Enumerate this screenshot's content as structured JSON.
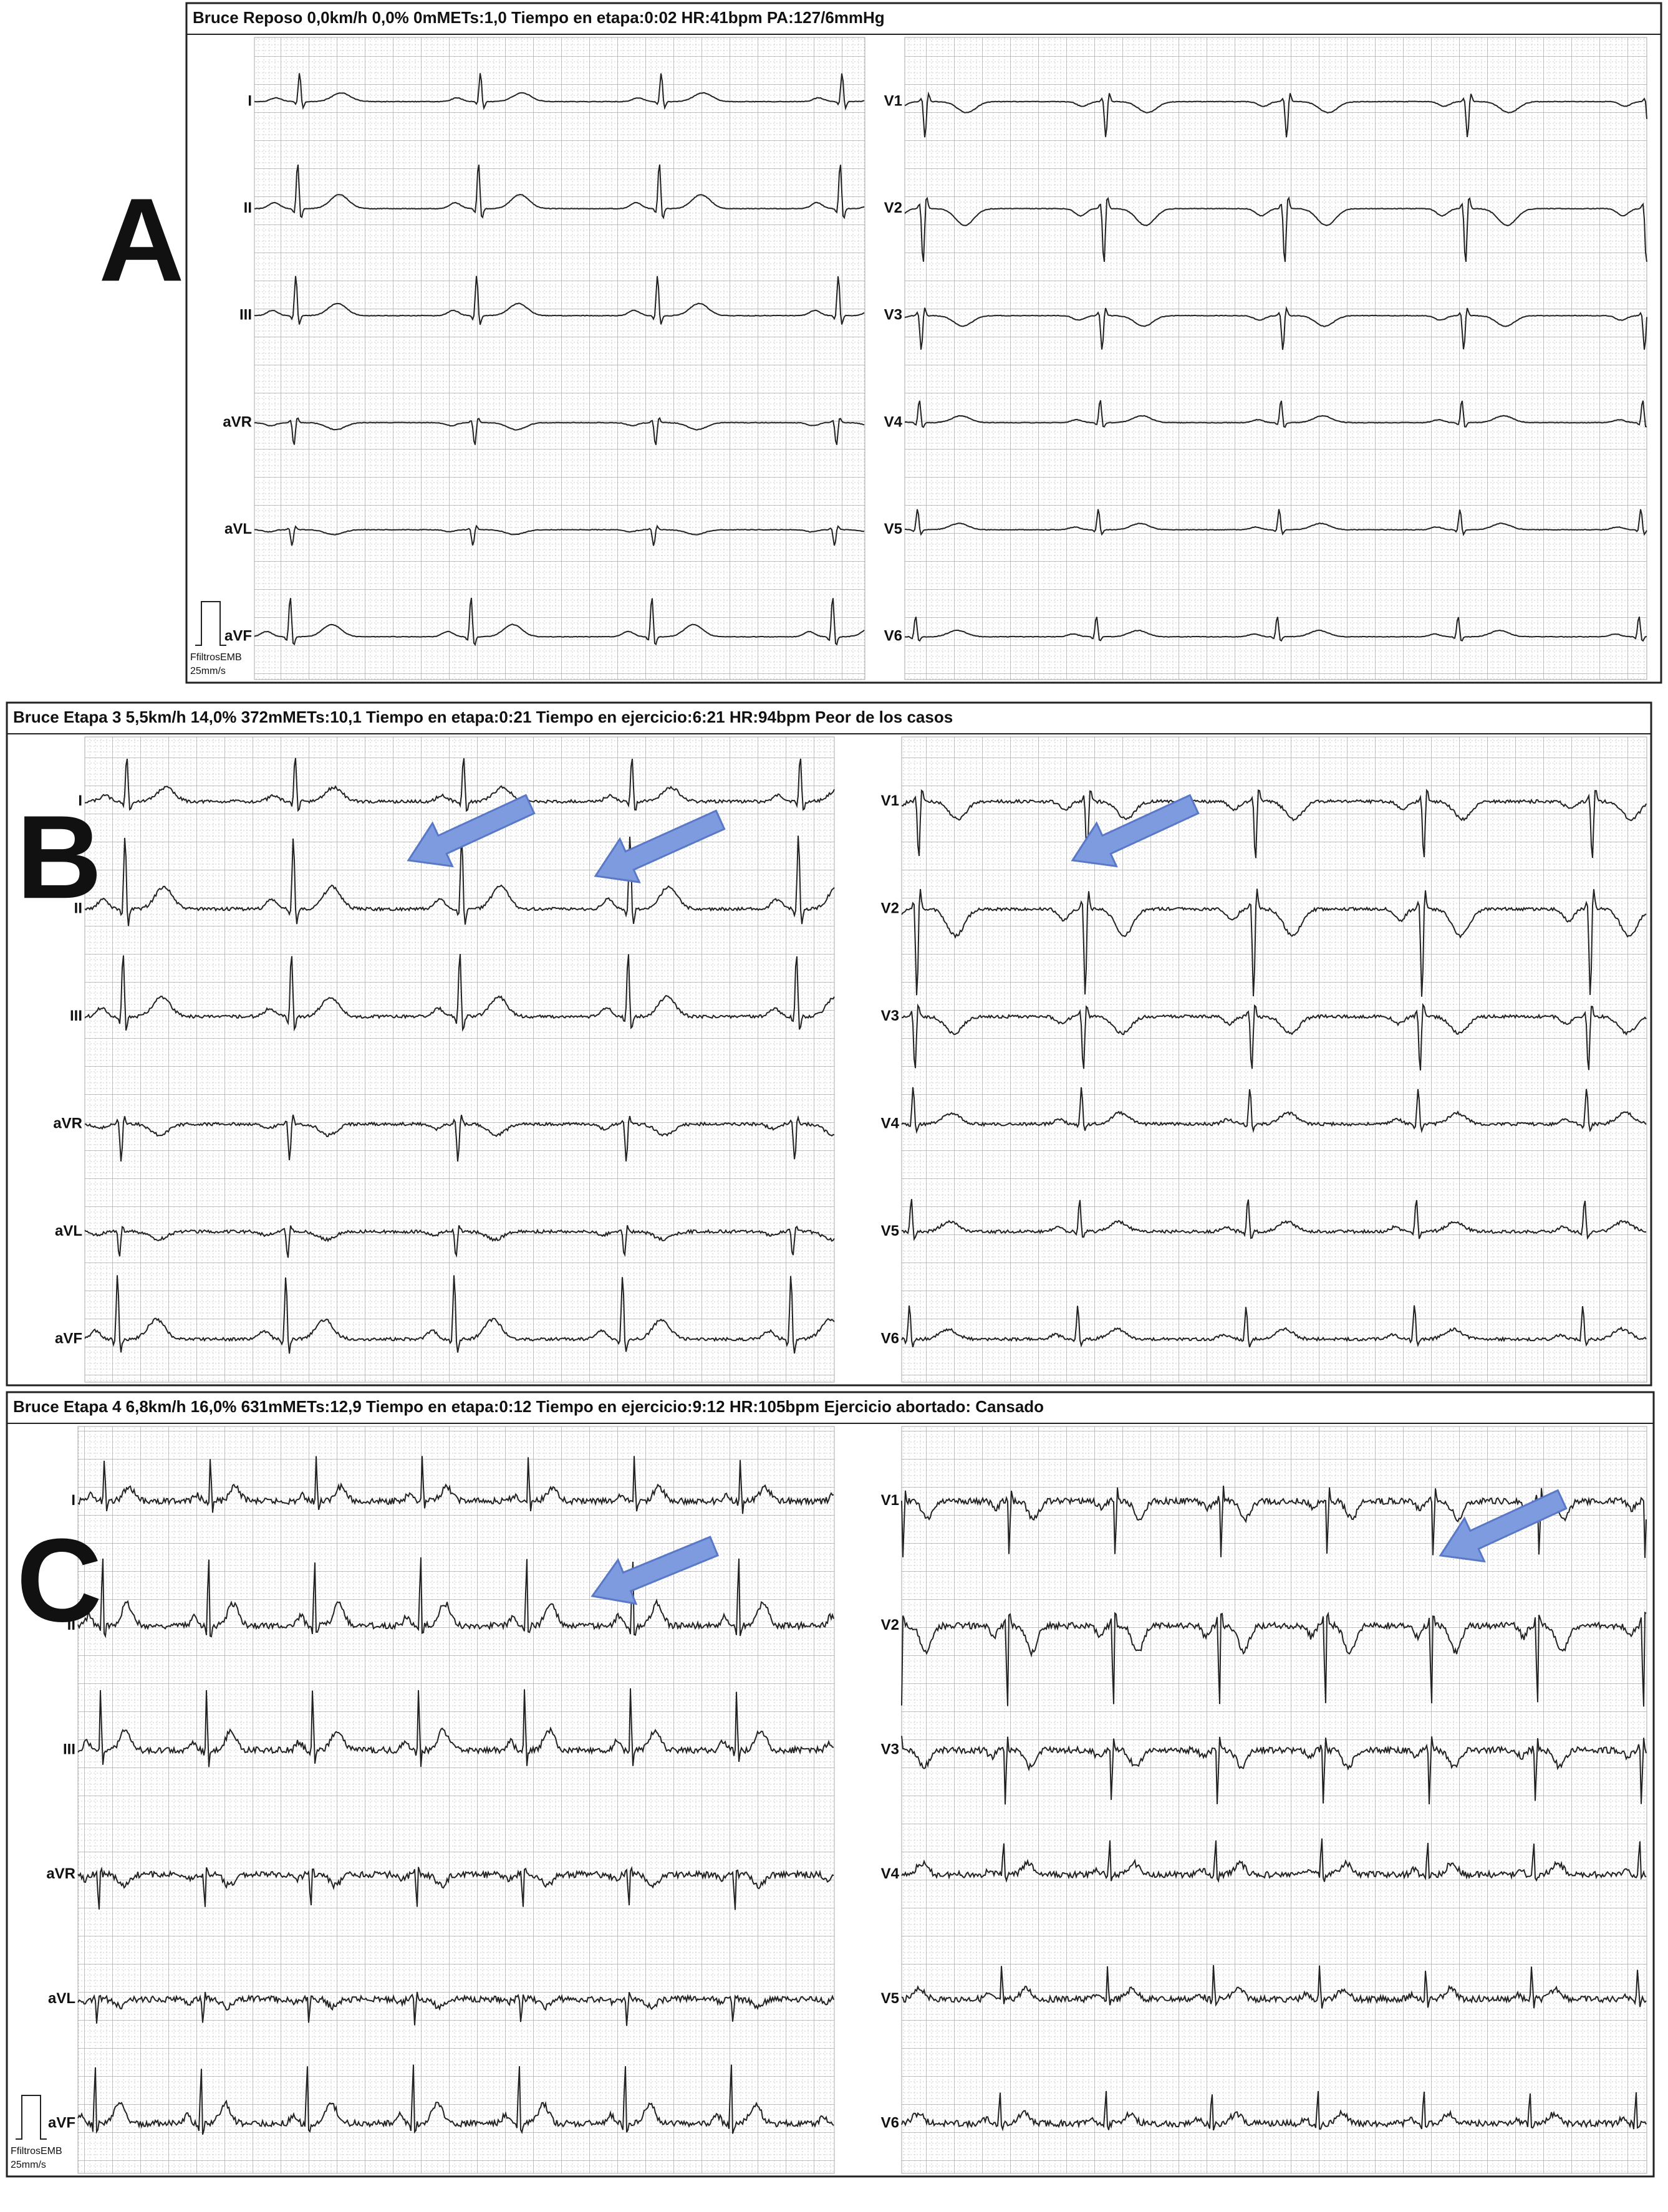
{
  "panels": [
    {
      "label": "A",
      "header": "Bruce  Reposo  0,0km/h 0,0% 0mMETs:1,0  Tiempo en etapa:0:02   HR:41bpm  PA:127/6mmHg",
      "leads_left": [
        "I",
        "II",
        "III",
        "aVR",
        "aVL",
        "aVF"
      ],
      "leads_right": [
        "V1",
        "V2",
        "V3",
        "V4",
        "V5",
        "V6"
      ],
      "filter": "FfiltrosEMB",
      "speed": "25mm/s"
    },
    {
      "label": "B",
      "header": "Bruce  Etapa 3  5,5km/h 14,0% 372mMETs:10,1  Tiempo en etapa:0:21  Tiempo en ejercicio:6:21  HR:94bpm    Peor de los casos",
      "leads_left": [
        "I",
        "II",
        "III",
        "aVR",
        "aVL",
        "aVF"
      ],
      "leads_right": [
        "V1",
        "V2",
        "V3",
        "V4",
        "V5",
        "V6"
      ]
    },
    {
      "label": "C",
      "header": "Bruce  Etapa 4  6,8km/h 16,0% 631mMETs:12,9  Tiempo en etapa:0:12  Tiempo en ejercicio:9:12  HR:105bpm    Ejercicio abortado: Cansado",
      "leads_left": [
        "I",
        "II",
        "III",
        "aVR",
        "aVL",
        "aVF"
      ],
      "leads_right": [
        "V1",
        "V2",
        "V3",
        "V4",
        "V5",
        "V6"
      ],
      "filter": "FfiltrosEMB",
      "speed": "25mm/s"
    }
  ]
}
